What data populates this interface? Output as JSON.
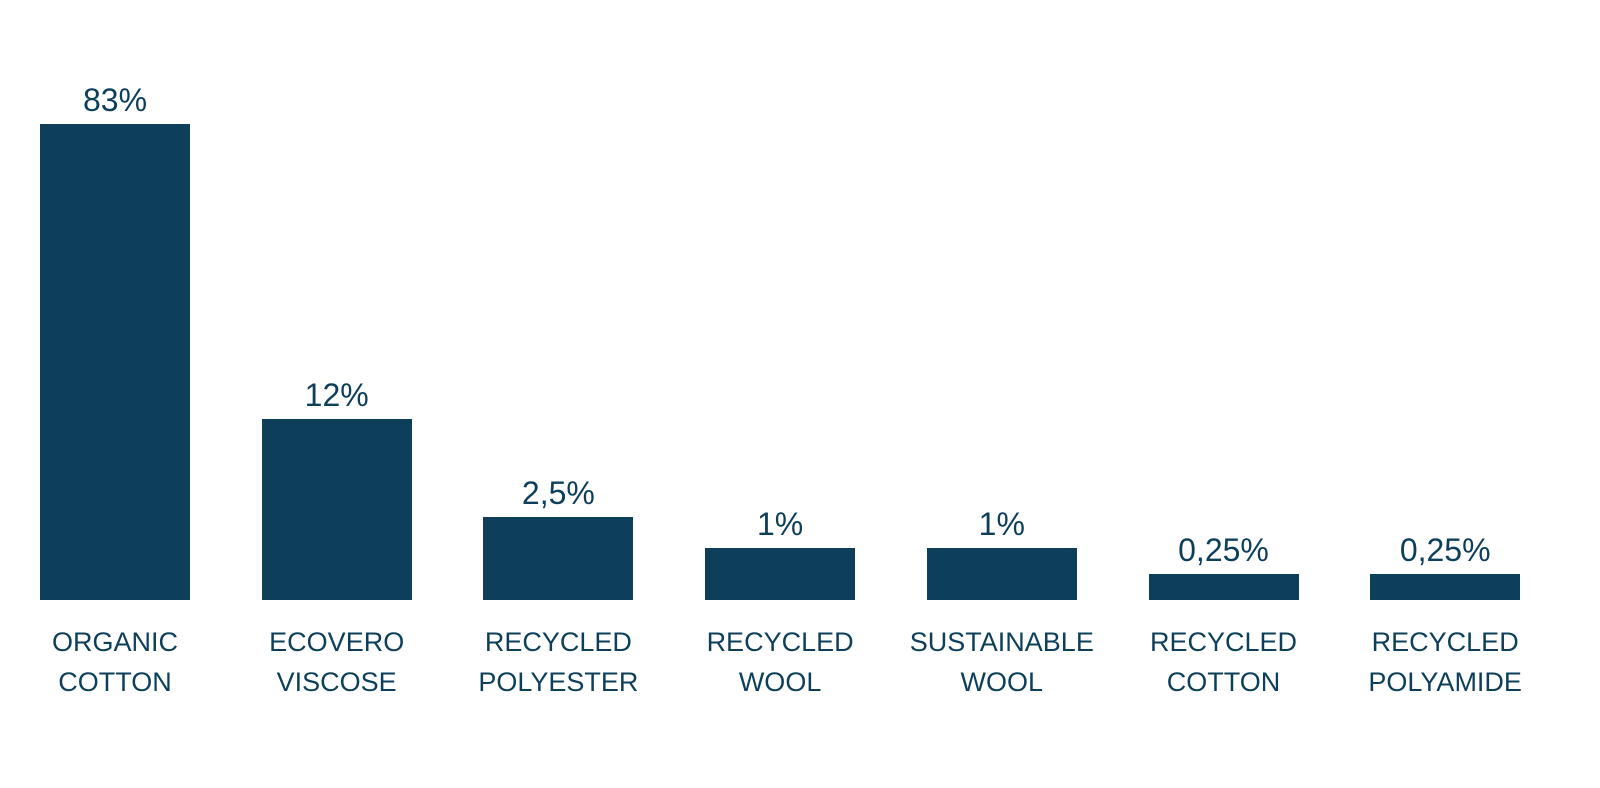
{
  "chart_data": {
    "type": "bar",
    "y_scale": "sqrt",
    "color": "#0d3f5a",
    "categories": [
      "ORGANIC COTTON",
      "ECOVERO VISCOSE",
      "RECYCLED POLYESTER",
      "RECYCLED WOOL",
      "SUSTAINABLE WOOL",
      "RECYCLED COTTON",
      "RECYCLED POLYAMIDE"
    ],
    "values": [
      83,
      12,
      2.5,
      1,
      1,
      0.25,
      0.25
    ],
    "value_labels": [
      "83%",
      "12%",
      "2,5%",
      "1%",
      "1%",
      "0,25%",
      "0,25%"
    ]
  }
}
